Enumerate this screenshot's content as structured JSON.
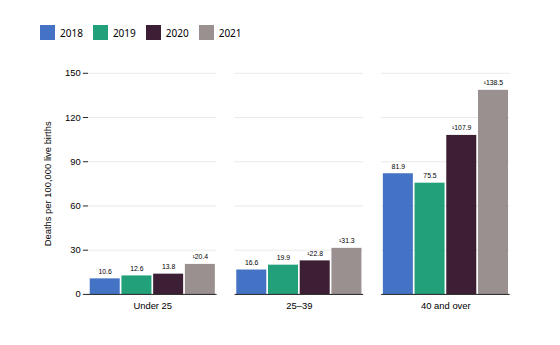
{
  "chart_data": {
    "type": "bar",
    "categories": [
      "Under 25",
      "25–39",
      "40 and over"
    ],
    "series": [
      {
        "name": "2018",
        "color": "#4472c4",
        "values": [
          10.6,
          16.6,
          81.9
        ],
        "value_labels": [
          "10.6",
          "16.6",
          "81.9"
        ]
      },
      {
        "name": "2019",
        "color": "#21a07a",
        "values": [
          12.6,
          19.9,
          75.5
        ],
        "value_labels": [
          "12.6",
          "19.9",
          "75.5"
        ]
      },
      {
        "name": "2020",
        "color": "#3d1f35",
        "values": [
          13.8,
          22.8,
          107.9
        ],
        "value_labels": [
          "13.8",
          "¹22.8",
          "¹107.9"
        ]
      },
      {
        "name": "2021",
        "color": "#9b9090",
        "values": [
          20.4,
          31.3,
          138.5
        ],
        "value_labels": [
          "¹20.4",
          "¹31.3",
          "¹138.5"
        ]
      }
    ],
    "ylabel": "Deaths per 100,000 live births",
    "ylim": [
      0,
      150
    ],
    "yticks": [
      0,
      30,
      60,
      90,
      120,
      150
    ],
    "grid": true,
    "legend": "top",
    "data_labels": true
  }
}
